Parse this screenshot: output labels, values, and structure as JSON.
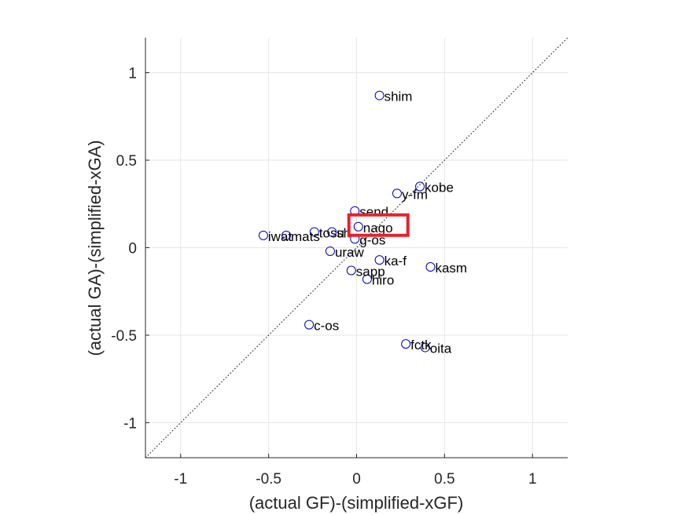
{
  "chart_data": {
    "type": "scatter",
    "xlabel": "(actual GF)-(simplified-xGF)",
    "ylabel": "(actual GA)-(simplified-xGA)",
    "xlim": [
      -1.2,
      1.2
    ],
    "ylim": [
      -1.2,
      1.2
    ],
    "xticks": [
      -1,
      -0.5,
      0,
      0.5,
      1
    ],
    "yticks": [
      -1,
      -0.5,
      0,
      0.5,
      1
    ],
    "xtick_labels": [
      "-1",
      "-0.5",
      "0",
      "0.5",
      "1"
    ],
    "ytick_labels": [
      "-1",
      "-0.5",
      "0",
      "0.5",
      "1"
    ],
    "grid": true,
    "diagonal_reference": true,
    "highlighted_label": "nago",
    "colors": {
      "marker": "#0000cc",
      "grid": "#e6e6e6",
      "highlight": "#e8202a",
      "axis": "#262626"
    },
    "points": [
      {
        "label": "shim",
        "x": 0.13,
        "y": 0.87
      },
      {
        "label": "kobe",
        "x": 0.36,
        "y": 0.35
      },
      {
        "label": "y-fm",
        "x": 0.23,
        "y": 0.31
      },
      {
        "label": "send",
        "x": -0.01,
        "y": 0.21
      },
      {
        "label": "nago",
        "x": 0.01,
        "y": 0.12
      },
      {
        "label": "tosu",
        "x": -0.24,
        "y": 0.09
      },
      {
        "label": "sh",
        "x": -0.14,
        "y": 0.09
      },
      {
        "label": "iwat",
        "x": -0.53,
        "y": 0.07
      },
      {
        "label": "mats",
        "x": -0.4,
        "y": 0.07
      },
      {
        "label": "g-os",
        "x": -0.01,
        "y": 0.05
      },
      {
        "label": "uraw",
        "x": -0.15,
        "y": -0.02
      },
      {
        "label": "ka-f",
        "x": 0.13,
        "y": -0.07
      },
      {
        "label": "kasm",
        "x": 0.42,
        "y": -0.11
      },
      {
        "label": "sapp",
        "x": -0.03,
        "y": -0.13
      },
      {
        "label": "hiro",
        "x": 0.06,
        "y": -0.18
      },
      {
        "label": "c-os",
        "x": -0.27,
        "y": -0.44
      },
      {
        "label": "fctk",
        "x": 0.28,
        "y": -0.55
      },
      {
        "label": "oita",
        "x": 0.39,
        "y": -0.57
      }
    ]
  }
}
